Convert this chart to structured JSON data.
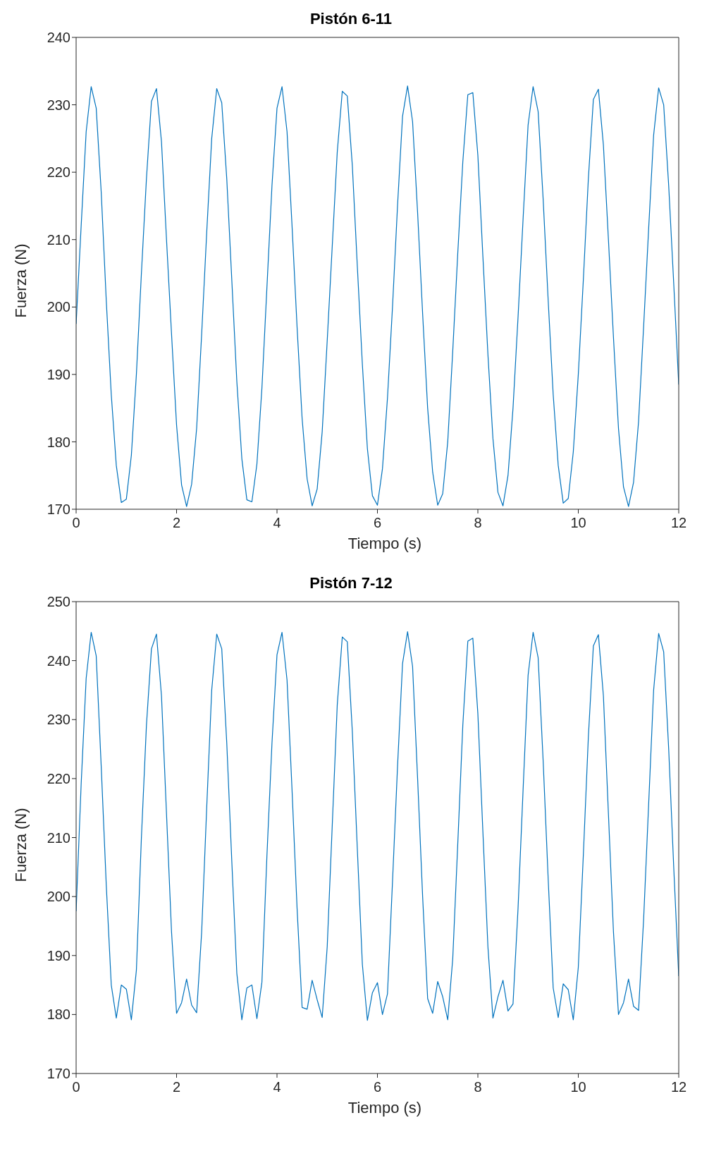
{
  "chart_data": [
    {
      "type": "line",
      "title": "Pistón 6-11",
      "xlabel": "Tiempo (s)",
      "ylabel": "Fuerza (N)",
      "xlim": [
        0,
        12
      ],
      "xticks": [
        0,
        2,
        4,
        6,
        8,
        10,
        12
      ],
      "ylim": [
        170,
        240
      ],
      "yticks": [
        170,
        180,
        190,
        200,
        210,
        220,
        230,
        240
      ],
      "grid": false,
      "legend": false,
      "x": [
        0,
        0.1,
        0.2,
        0.3,
        0.4,
        0.5,
        0.6,
        0.7,
        0.8,
        0.9,
        1,
        1.1,
        1.2,
        1.3,
        1.4,
        1.5,
        1.6,
        1.7,
        1.8,
        1.9,
        2,
        2.1,
        2.2,
        2.3,
        2.4,
        2.5,
        2.6,
        2.7,
        2.8,
        2.9,
        3,
        3.1,
        3.2,
        3.3,
        3.4,
        3.5,
        3.6,
        3.7,
        3.8,
        3.9,
        4,
        4.1,
        4.2,
        4.3,
        4.4,
        4.5,
        4.6,
        4.7,
        4.8,
        4.9,
        5,
        5.1,
        5.2,
        5.3,
        5.4,
        5.5,
        5.6,
        5.7,
        5.8,
        5.9,
        6,
        6.1,
        6.2,
        6.3,
        6.4,
        6.5,
        6.6,
        6.7,
        6.8,
        6.9,
        7,
        7.1,
        7.2,
        7.3,
        7.4,
        7.5,
        7.6,
        7.7,
        7.8,
        7.9,
        8,
        8.1,
        8.2,
        8.3,
        8.4,
        8.5,
        8.6,
        8.7,
        8.8,
        8.9,
        9,
        9.1,
        9.2,
        9.3,
        9.4,
        9.5,
        9.6,
        9.7,
        9.8,
        9.9,
        10,
        10.1,
        10.2,
        10.3,
        10.4,
        10.5,
        10.6,
        10.7,
        10.8,
        10.9,
        11,
        11.1,
        11.2,
        11.3,
        11.4,
        11.5,
        11.6,
        11.7,
        11.8,
        11.9,
        12
      ],
      "series": [
        {
          "color": "#0072bd",
          "values": [
            197.5,
            212,
            226,
            232.7,
            229.5,
            217,
            201,
            187,
            176.5,
            171,
            171.5,
            178,
            190,
            205,
            219,
            230.5,
            232.4,
            224.5,
            210,
            196,
            182.5,
            173.6,
            170.4,
            173.7,
            182,
            196,
            211,
            225,
            232.4,
            230.3,
            219,
            204,
            189,
            177.5,
            171.4,
            171.1,
            176.7,
            188,
            203,
            218,
            229.5,
            232.7,
            226,
            212,
            197,
            183.5,
            174.5,
            170.5,
            173,
            181.5,
            195,
            209,
            223,
            232,
            231.3,
            221,
            206,
            191.5,
            179,
            172,
            170.6,
            176,
            186.5,
            200,
            215,
            228.3,
            232.8,
            227.5,
            214,
            199,
            185,
            175.5,
            170.6,
            172.3,
            180,
            193.5,
            208,
            221.5,
            231.5,
            231.8,
            222.5,
            207.5,
            193,
            180.5,
            172.5,
            170.5,
            175,
            185,
            198.5,
            213,
            227,
            232.7,
            229,
            216,
            201,
            187,
            176.5,
            170.9,
            171.6,
            178.5,
            190,
            204,
            219,
            230.8,
            232.3,
            224,
            210,
            195.5,
            182,
            173.3,
            170.4,
            174,
            183,
            197,
            211.5,
            225.5,
            232.5,
            230,
            218,
            203.5,
            188.5
          ]
        }
      ]
    },
    {
      "type": "line",
      "title": "Pistón 7-12",
      "xlabel": "Tiempo (s)",
      "ylabel": "Fuerza (N)",
      "xlim": [
        0,
        12
      ],
      "xticks": [
        0,
        2,
        4,
        6,
        8,
        10,
        12
      ],
      "ylim": [
        170,
        250
      ],
      "yticks": [
        170,
        180,
        190,
        200,
        210,
        220,
        230,
        240,
        250
      ],
      "grid": false,
      "legend": false,
      "x": [
        0,
        0.1,
        0.2,
        0.3,
        0.4,
        0.5,
        0.6,
        0.7,
        0.8,
        0.9,
        1,
        1.1,
        1.2,
        1.3,
        1.4,
        1.5,
        1.6,
        1.7,
        1.8,
        1.9,
        2,
        2.1,
        2.2,
        2.3,
        2.4,
        2.5,
        2.6,
        2.7,
        2.8,
        2.9,
        3,
        3.1,
        3.2,
        3.3,
        3.4,
        3.5,
        3.6,
        3.7,
        3.8,
        3.9,
        4,
        4.1,
        4.2,
        4.3,
        4.4,
        4.5,
        4.6,
        4.7,
        4.8,
        4.9,
        5,
        5.1,
        5.2,
        5.3,
        5.4,
        5.5,
        5.6,
        5.7,
        5.8,
        5.9,
        6,
        6.1,
        6.2,
        6.3,
        6.4,
        6.5,
        6.6,
        6.7,
        6.8,
        6.9,
        7,
        7.1,
        7.2,
        7.3,
        7.4,
        7.5,
        7.6,
        7.7,
        7.8,
        7.9,
        8,
        8.1,
        8.2,
        8.3,
        8.4,
        8.5,
        8.6,
        8.7,
        8.8,
        8.9,
        9,
        9.1,
        9.2,
        9.3,
        9.4,
        9.5,
        9.6,
        9.7,
        9.8,
        9.9,
        10,
        10.1,
        10.2,
        10.3,
        10.4,
        10.5,
        10.6,
        10.7,
        10.8,
        10.9,
        11,
        11.1,
        11.2,
        11.3,
        11.4,
        11.5,
        11.6,
        11.7,
        11.8,
        11.9,
        12
      ],
      "series": [
        {
          "color": "#0072bd",
          "values": [
            197.5,
            219,
            237,
            244.8,
            240.8,
            222,
            202,
            185,
            179.4,
            185,
            184.3,
            179.1,
            187.5,
            210,
            229,
            242,
            244.5,
            234,
            214,
            194,
            180.2,
            182,
            186,
            181.6,
            180.3,
            194,
            215,
            235,
            244.5,
            242,
            226,
            206,
            187,
            179.1,
            184.5,
            185,
            179.3,
            185.5,
            207,
            226,
            241,
            244.8,
            236.7,
            218,
            198,
            181.2,
            180.9,
            185.8,
            182.5,
            179.5,
            191.5,
            212,
            232.5,
            244,
            243.2,
            228,
            208,
            188.5,
            179,
            183.7,
            185.4,
            180,
            183.5,
            202.5,
            222,
            239.5,
            244.9,
            239,
            220,
            200,
            182.7,
            180.2,
            185.6,
            183,
            179.1,
            189.5,
            209,
            229,
            243.3,
            243.8,
            231,
            211,
            191.5,
            179.4,
            183,
            185.8,
            180.6,
            181.8,
            198,
            218,
            237.5,
            244.8,
            240.5,
            223,
            203,
            184.5,
            179.5,
            185.2,
            184.2,
            179.1,
            188,
            207,
            227,
            242.5,
            244.4,
            234,
            214,
            194,
            180,
            182,
            186,
            181.4,
            180.7,
            196,
            215.5,
            235,
            244.6,
            241.5,
            225,
            205,
            186.5
          ]
        }
      ]
    }
  ]
}
